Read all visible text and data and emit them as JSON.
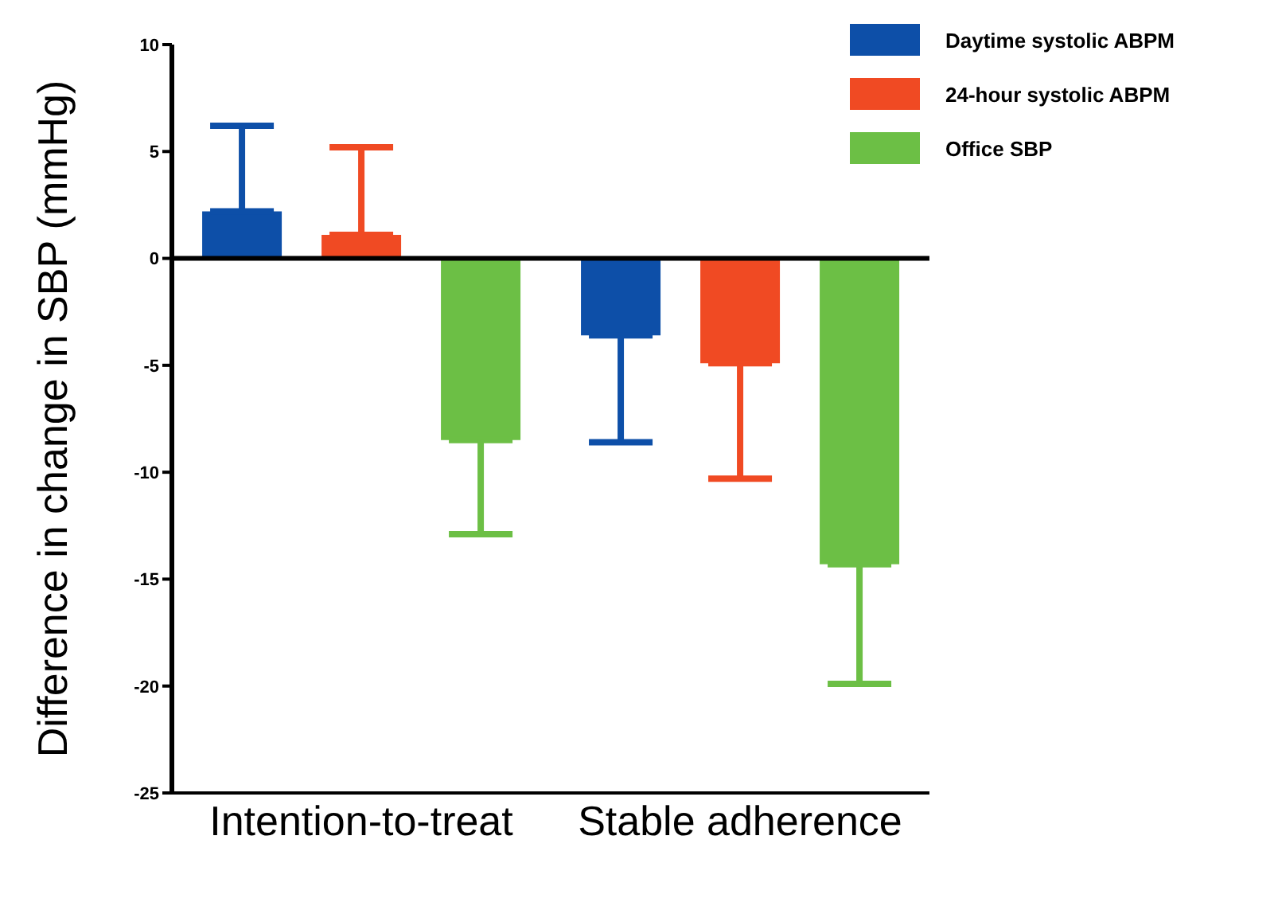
{
  "chart_data": {
    "type": "bar",
    "ylabel": "Difference in change in SBP (mmHg)",
    "categories": [
      "Intention-to-treat",
      "Stable adherence"
    ],
    "series": [
      {
        "name": "Daytime systolic ABPM",
        "color": "#0d4fa8",
        "values": [
          2.2,
          -3.6
        ],
        "errors": [
          [
            2.2,
            6.2
          ],
          [
            -8.6,
            -3.6
          ]
        ]
      },
      {
        "name": "24-hour systolic ABPM",
        "color": "#f04a23",
        "values": [
          1.1,
          -4.9
        ],
        "errors": [
          [
            1.1,
            5.2
          ],
          [
            -10.3,
            -4.9
          ]
        ]
      },
      {
        "name": "Office SBP",
        "color": "#6cbf45",
        "values": [
          -8.5,
          -14.3
        ],
        "errors": [
          [
            -12.9,
            -8.5
          ],
          [
            -19.9,
            -14.3
          ]
        ]
      }
    ],
    "ylim": [
      -25,
      10
    ],
    "yticks": [
      10,
      5,
      0,
      -5,
      -10,
      -15,
      -20,
      -25
    ],
    "grid": false,
    "legend": "top right",
    "ref_lines": [
      {
        "axis": "y",
        "value": 0,
        "label": null
      }
    ]
  }
}
